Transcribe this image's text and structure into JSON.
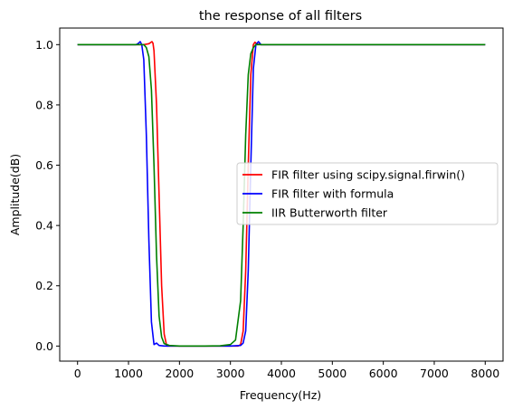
{
  "chart_data": {
    "type": "line",
    "title": "the response of all filters",
    "xlabel": "Frequency(Hz)",
    "ylabel": "Amplitude(dB)",
    "xlim": [
      -350,
      8350
    ],
    "ylim": [
      -0.05,
      1.055
    ],
    "xticks": [
      0,
      1000,
      2000,
      3000,
      4000,
      5000,
      6000,
      7000,
      8000
    ],
    "yticks": [
      0.0,
      0.2,
      0.4,
      0.6,
      0.8,
      1.0
    ],
    "xtick_labels": [
      "0",
      "1000",
      "2000",
      "3000",
      "4000",
      "5000",
      "6000",
      "7000",
      "8000"
    ],
    "ytick_labels": [
      "0.0",
      "0.2",
      "0.4",
      "0.6",
      "0.8",
      "1.0"
    ],
    "grid": false,
    "legend": "center-right",
    "series": [
      {
        "name": "FIR filter using scipy.signal.firwin()",
        "color": "#ff0000",
        "x": [
          0,
          1300,
          1400,
          1460,
          1480,
          1500,
          1550,
          1600,
          1650,
          1700,
          1750,
          1800,
          2000,
          2500,
          3000,
          3150,
          3200,
          3250,
          3300,
          3350,
          3400,
          3450,
          3480,
          3520,
          3600,
          8000
        ],
        "y": [
          1.0,
          1.0,
          1.003,
          1.01,
          1.005,
          0.98,
          0.8,
          0.5,
          0.2,
          0.04,
          0.0,
          0.0,
          0.0,
          0.0,
          0.0,
          0.0,
          0.005,
          0.05,
          0.25,
          0.6,
          0.9,
          1.0,
          1.008,
          1.002,
          1.0,
          1.0
        ]
      },
      {
        "name": "FIR filter with formula",
        "color": "#0000ff",
        "x": [
          0,
          1150,
          1200,
          1230,
          1260,
          1300,
          1350,
          1400,
          1450,
          1500,
          1550,
          1600,
          1700,
          2000,
          2500,
          3000,
          3200,
          3250,
          3300,
          3350,
          3400,
          3450,
          3500,
          3550,
          3600,
          8000
        ],
        "y": [
          1.0,
          1.0,
          1.005,
          1.01,
          1.0,
          0.95,
          0.7,
          0.35,
          0.08,
          0.005,
          0.01,
          0.002,
          0.0,
          0.0,
          0.0,
          0.0,
          0.002,
          0.01,
          0.05,
          0.25,
          0.6,
          0.92,
          1.0,
          1.01,
          1.0,
          1.0
        ]
      },
      {
        "name": "IIR Butterworth filter",
        "color": "#008000",
        "x": [
          0,
          1300,
          1350,
          1400,
          1450,
          1500,
          1550,
          1600,
          1650,
          1700,
          1800,
          2000,
          2500,
          2800,
          3000,
          3100,
          3200,
          3250,
          3300,
          3350,
          3400,
          3450,
          3500,
          3600,
          8000
        ],
        "y": [
          1.0,
          1.0,
          0.99,
          0.96,
          0.85,
          0.6,
          0.3,
          0.1,
          0.03,
          0.008,
          0.002,
          0.0,
          0.0,
          0.001,
          0.005,
          0.02,
          0.15,
          0.4,
          0.7,
          0.9,
          0.97,
          0.99,
          1.0,
          1.0,
          1.0
        ]
      }
    ]
  }
}
